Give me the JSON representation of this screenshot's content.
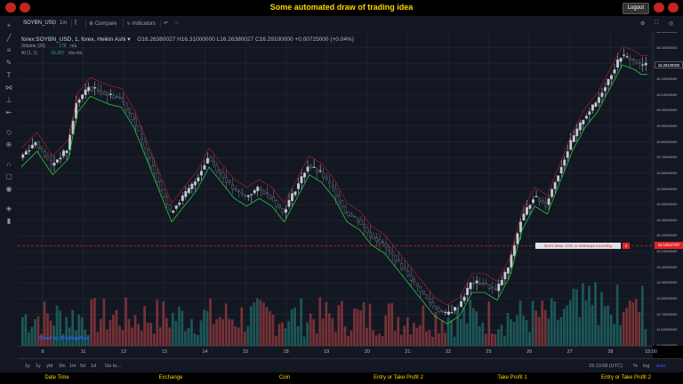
{
  "header": {
    "title": "Some automated draw of trading idea",
    "logout_label": "Logout"
  },
  "toolbar": {
    "symbol": "SOYBN_USD",
    "interval": "1m",
    "compare_label": "Compare",
    "indicators_label": "Indicators"
  },
  "legend": {
    "main": "forex:SOYBN_USD, 1, forex, Heikin Ashi",
    "ohlc": "O16.26380027  H16.31000000  L16.26380027  C16.29100000  +0.00725000 (+0.04%)",
    "volume": "Volume (20)",
    "volume_value": "176",
    "volume_na": "n/a",
    "ai": "AI (1, 1)",
    "ai_value": "16.287",
    "ai_na": "n/a  n/a"
  },
  "watermark": "Chart by TradingView",
  "annotation": {
    "text": "Don't draw. CHC or sideways incoming",
    "tag": "1"
  },
  "price_axis": {
    "labels": [
      "16.50000000",
      "16.40000000",
      "16.30000000",
      "16.20000000",
      "16.10000000",
      "16.00000000",
      "15.90000000",
      "15.80000000",
      "15.70000000",
      "15.60000000",
      "15.50000000",
      "15.40000000",
      "15.30000000",
      "15.20000000",
      "15.10000000",
      "15.00000000",
      "14.90000000",
      "14.80000000",
      "14.70000000",
      "14.60000000",
      "14.50000000"
    ],
    "highlight_price": "15.13847757",
    "last_price": "16.29100000"
  },
  "time_axis": {
    "labels": [
      "8",
      "11",
      "12",
      "13",
      "14",
      "15",
      "18",
      "19",
      "20",
      "21",
      "22",
      "25",
      "26",
      "27",
      "28",
      "15:00"
    ]
  },
  "bottom": {
    "ranges": [
      "1y",
      "1y",
      "ytd",
      "3m",
      "1m",
      "5d",
      "1d",
      "Go to..."
    ],
    "time": "15:13:58 (UTC)",
    "pct": "%",
    "log": "log",
    "auto": "auto"
  },
  "footer": {
    "items": [
      "Date Time",
      "Exchange",
      "Coin",
      "Entry or Take Profit 2",
      "Take Profit 1",
      "Entry or Take Profit 2"
    ]
  },
  "colors": {
    "up": "#26a69a",
    "down": "#ef5350",
    "bg": "#131722",
    "accent": "#ffd700"
  },
  "chart_data": {
    "type": "candlestick",
    "description": "Heikin Ashi candles with volume histogram",
    "ylim": [
      14.5,
      16.5
    ],
    "x_labels": [
      "8",
      "11",
      "12",
      "13",
      "14",
      "15",
      "18",
      "19",
      "20",
      "21",
      "22",
      "25",
      "26",
      "27",
      "28",
      "15:00"
    ],
    "close_path": [
      [
        0,
        15.7
      ],
      [
        5,
        15.8
      ],
      [
        10,
        15.65
      ],
      [
        15,
        15.75
      ],
      [
        18,
        16.05
      ],
      [
        22,
        16.15
      ],
      [
        28,
        16.1
      ],
      [
        32,
        16.08
      ],
      [
        36,
        15.95
      ],
      [
        40,
        15.75
      ],
      [
        44,
        15.55
      ],
      [
        48,
        15.35
      ],
      [
        52,
        15.45
      ],
      [
        56,
        15.55
      ],
      [
        60,
        15.7
      ],
      [
        64,
        15.6
      ],
      [
        68,
        15.5
      ],
      [
        72,
        15.45
      ],
      [
        76,
        15.5
      ],
      [
        80,
        15.45
      ],
      [
        84,
        15.35
      ],
      [
        88,
        15.5
      ],
      [
        92,
        15.65
      ],
      [
        96,
        15.6
      ],
      [
        100,
        15.5
      ],
      [
        104,
        15.35
      ],
      [
        108,
        15.3
      ],
      [
        112,
        15.2
      ],
      [
        116,
        15.15
      ],
      [
        120,
        15.05
      ],
      [
        124,
        14.95
      ],
      [
        128,
        14.85
      ],
      [
        132,
        14.75
      ],
      [
        136,
        14.7
      ],
      [
        140,
        14.75
      ],
      [
        144,
        14.9
      ],
      [
        148,
        14.9
      ],
      [
        152,
        14.85
      ],
      [
        156,
        15.0
      ],
      [
        160,
        15.3
      ],
      [
        164,
        15.45
      ],
      [
        168,
        15.4
      ],
      [
        172,
        15.6
      ],
      [
        176,
        15.8
      ],
      [
        180,
        15.95
      ],
      [
        184,
        16.05
      ],
      [
        188,
        16.2
      ],
      [
        192,
        16.35
      ],
      [
        196,
        16.32
      ],
      [
        198,
        16.29
      ]
    ]
  }
}
